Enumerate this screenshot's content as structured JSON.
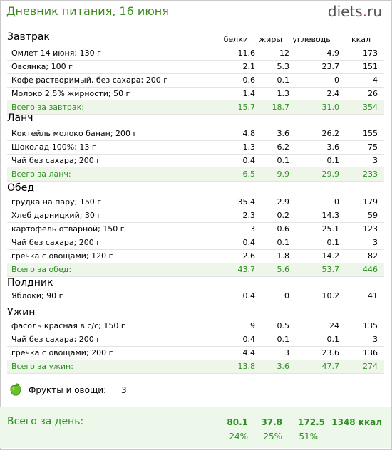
{
  "header": {
    "title": "Дневник питания, 16 июня",
    "logo_main": "diets",
    "logo_dot": ".",
    "logo_tld": "ru"
  },
  "columns": {
    "protein": "белки",
    "fat": "жиры",
    "carbs": "углеводы",
    "kcal": "ккал"
  },
  "meals": {
    "breakfast": {
      "title": "Завтрак",
      "items": [
        {
          "name": "Омлет 14 июня; 130 г",
          "p": "11.6",
          "f": "12",
          "c": "4.9",
          "k": "173"
        },
        {
          "name": "Овсянка; 100 г",
          "p": "2.1",
          "f": "5.3",
          "c": "23.7",
          "k": "151"
        },
        {
          "name": "Кофе растворимый, без сахара; 200 г",
          "p": "0.6",
          "f": "0.1",
          "c": "0",
          "k": "4"
        },
        {
          "name": "Молоко 2,5% жирности; 50 г",
          "p": "1.4",
          "f": "1.3",
          "c": "2.4",
          "k": "26"
        }
      ],
      "total": {
        "name": "Всего за завтрак:",
        "p": "15.7",
        "f": "18.7",
        "c": "31.0",
        "k": "354"
      }
    },
    "lunch": {
      "title": "Ланч",
      "items": [
        {
          "name": "Коктейль молоко банан; 200 г",
          "p": "4.8",
          "f": "3.6",
          "c": "26.2",
          "k": "155"
        },
        {
          "name": "Шоколад 100%; 13 г",
          "p": "1.3",
          "f": "6.2",
          "c": "3.6",
          "k": "75"
        },
        {
          "name": "Чай без сахара; 200 г",
          "p": "0.4",
          "f": "0.1",
          "c": "0.1",
          "k": "3"
        }
      ],
      "total": {
        "name": "Всего за ланч:",
        "p": "6.5",
        "f": "9.9",
        "c": "29.9",
        "k": "233"
      }
    },
    "dinner": {
      "title": "Обед",
      "items": [
        {
          "name": "грудка на пару; 150 г",
          "p": "35.4",
          "f": "2.9",
          "c": "0",
          "k": "179"
        },
        {
          "name": "Хлеб дарницкий; 30 г",
          "p": "2.3",
          "f": "0.2",
          "c": "14.3",
          "k": "59"
        },
        {
          "name": "картофель отварной; 150 г",
          "p": "3",
          "f": "0.6",
          "c": "25.1",
          "k": "123"
        },
        {
          "name": "Чай без сахара; 200 г",
          "p": "0.4",
          "f": "0.1",
          "c": "0.1",
          "k": "3"
        },
        {
          "name": "гречка с овощами; 120 г",
          "p": "2.6",
          "f": "1.8",
          "c": "14.2",
          "k": "82"
        }
      ],
      "total": {
        "name": "Всего за обед:",
        "p": "43.7",
        "f": "5.6",
        "c": "53.7",
        "k": "446"
      }
    },
    "snack": {
      "title": "Полдник",
      "items": [
        {
          "name": "Яблоки; 90 г",
          "p": "0.4",
          "f": "0",
          "c": "10.2",
          "k": "41"
        }
      ]
    },
    "supper": {
      "title": "Ужин",
      "items": [
        {
          "name": "фасоль красная в с/с; 150 г",
          "p": "9",
          "f": "0.5",
          "c": "24",
          "k": "135"
        },
        {
          "name": "Чай без сахара; 200 г",
          "p": "0.4",
          "f": "0.1",
          "c": "0.1",
          "k": "3"
        },
        {
          "name": "гречка с овощами; 200 г",
          "p": "4.4",
          "f": "3",
          "c": "23.6",
          "k": "136"
        }
      ],
      "total": {
        "name": "Всего за ужин:",
        "p": "13.8",
        "f": "3.6",
        "c": "47.7",
        "k": "274"
      }
    }
  },
  "fruits": {
    "label": "Фрукты и овощи:",
    "value": "3",
    "icon": "apple-icon"
  },
  "day_total": {
    "label": "Всего за день:",
    "p": "80.1",
    "f": "37.8",
    "c": "172.5",
    "k": "1348 ккал",
    "pp": "24%",
    "fp": "25%",
    "cp": "51%"
  },
  "colors": {
    "accent": "#2e8f22",
    "title": "#3c8a1c",
    "total_bg": "#eef6ea",
    "logo_dot": "#e23a2a"
  }
}
